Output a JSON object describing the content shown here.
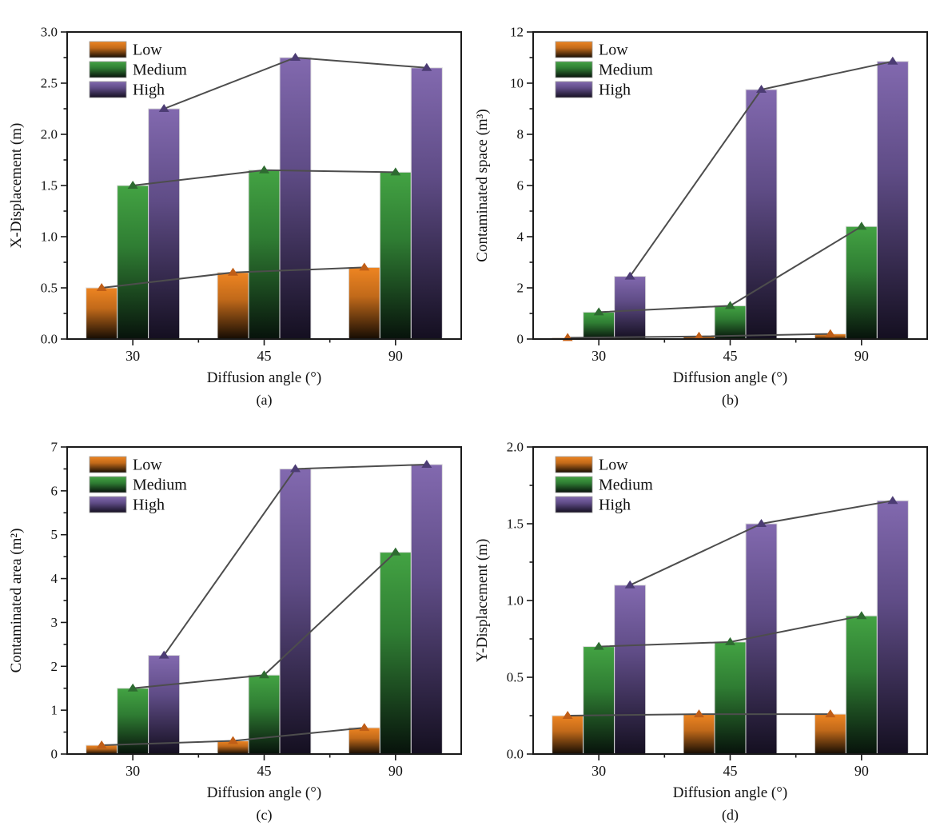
{
  "figure": {
    "background": "#ffffff",
    "legend_labels": [
      "Low",
      "Medium",
      "High"
    ],
    "styles": {
      "axis_color": "#1a1a1a",
      "connector_line_color": "#4d4d4d",
      "bar_edge_color": "#dcdcdc",
      "series": {
        "Low": {
          "top": "#EE8522",
          "mid": "#C26A1A",
          "bottom": "#150C03",
          "marker": "#C05E17"
        },
        "Medium": {
          "top": "#43A343",
          "mid": "#2F7D33",
          "bottom": "#07120B",
          "marker": "#2E6B31"
        },
        "High": {
          "top": "#8269AF",
          "mid": "#5F4C86",
          "bottom": "#140F20",
          "marker": "#4C3C74"
        }
      }
    }
  },
  "chart_data": [
    {
      "id": "a",
      "type": "bar",
      "overlay": "line-with-triangle-markers",
      "caption": "(a)",
      "xlabel": "Diffusion angle (°)",
      "ylabel": "X-Displacement (m)",
      "ylim": [
        0,
        3
      ],
      "ytick_major": 0.5,
      "ytick_minor": 0.25,
      "ydecimals": 1,
      "grid": false,
      "legend_position": "top-left",
      "categories": [
        "30",
        "45",
        "90"
      ],
      "series": [
        {
          "name": "Low",
          "values": [
            0.5,
            0.65,
            0.7
          ]
        },
        {
          "name": "Medium",
          "values": [
            1.5,
            1.65,
            1.63
          ]
        },
        {
          "name": "High",
          "values": [
            2.25,
            2.75,
            2.65
          ]
        }
      ]
    },
    {
      "id": "b",
      "type": "bar",
      "overlay": "line-with-triangle-markers",
      "caption": "(b)",
      "xlabel": "Diffusion angle (°)",
      "ylabel": "Contaminated space (m³)",
      "ylim": [
        0,
        12
      ],
      "ytick_major": 2,
      "ytick_minor": 1,
      "ydecimals": 0,
      "grid": false,
      "legend_position": "top-left",
      "categories": [
        "30",
        "45",
        "90"
      ],
      "series": [
        {
          "name": "Low",
          "values": [
            0.05,
            0.1,
            0.2
          ]
        },
        {
          "name": "Medium",
          "values": [
            1.05,
            1.3,
            4.4
          ]
        },
        {
          "name": "High",
          "values": [
            2.45,
            9.75,
            10.85
          ]
        }
      ]
    },
    {
      "id": "c",
      "type": "bar",
      "overlay": "line-with-triangle-markers",
      "caption": "(c)",
      "xlabel": "Diffusion angle (°)",
      "ylabel": "Contaminated area (m²)",
      "ylim": [
        0,
        7
      ],
      "ytick_major": 1,
      "ytick_minor": 0.5,
      "ydecimals": 0,
      "grid": false,
      "legend_position": "top-left",
      "categories": [
        "30",
        "45",
        "90"
      ],
      "series": [
        {
          "name": "Low",
          "values": [
            0.2,
            0.3,
            0.6
          ]
        },
        {
          "name": "Medium",
          "values": [
            1.5,
            1.8,
            4.6
          ]
        },
        {
          "name": "High",
          "values": [
            2.25,
            6.5,
            6.6
          ]
        }
      ]
    },
    {
      "id": "d",
      "type": "bar",
      "overlay": "line-with-triangle-markers",
      "caption": "(d)",
      "xlabel": "Diffusion angle (°)",
      "ylabel": "Y-Displacement (m)",
      "ylim": [
        0,
        2
      ],
      "ytick_major": 0.5,
      "ytick_minor": 0.25,
      "ydecimals": 1,
      "grid": false,
      "legend_position": "top-left",
      "categories": [
        "30",
        "45",
        "90"
      ],
      "series": [
        {
          "name": "Low",
          "values": [
            0.25,
            0.26,
            0.26
          ]
        },
        {
          "name": "Medium",
          "values": [
            0.7,
            0.73,
            0.9
          ]
        },
        {
          "name": "High",
          "values": [
            1.1,
            1.5,
            1.65
          ]
        }
      ]
    }
  ]
}
